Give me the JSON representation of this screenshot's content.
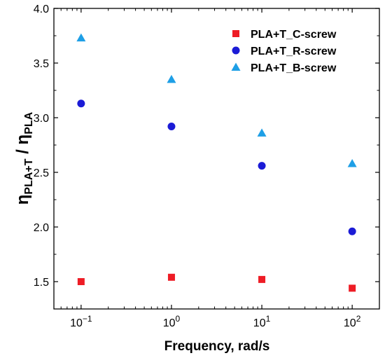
{
  "chart_data": {
    "type": "scatter",
    "x": [
      0.1,
      1,
      10,
      100
    ],
    "x_tick_labels": [
      {
        "base": "10",
        "exp": "−1"
      },
      {
        "base": "10",
        "exp": "0"
      },
      {
        "base": "10",
        "exp": "1"
      },
      {
        "base": "10",
        "exp": "2"
      }
    ],
    "y_tick_labels": [
      "1.5",
      "2.0",
      "2.5",
      "3.0",
      "3.5",
      "4.0"
    ],
    "y_ticks": [
      1.5,
      2.0,
      2.5,
      3.0,
      3.5,
      4.0
    ],
    "xscale": "log",
    "xlim": [
      0.05,
      200
    ],
    "ylim": [
      1.25,
      4.0
    ],
    "xlabel": "Frequency, rad/s",
    "ylabel": {
      "main1": "η",
      "sub1": "PLA+T",
      "sep": " / ",
      "main2": "η",
      "sub2": "PLA"
    },
    "grid": false,
    "legend_position": "top-right",
    "series": [
      {
        "name": "PLA+T_C-screw",
        "marker": "square",
        "color": "#ee1c25",
        "values": [
          1.5,
          1.54,
          1.52,
          1.44
        ]
      },
      {
        "name": "PLA+T_R-screw",
        "marker": "circle",
        "color": "#1b1bd6",
        "values": [
          3.13,
          2.92,
          2.56,
          1.96
        ]
      },
      {
        "name": "PLA+T_B-screw",
        "marker": "triangle",
        "color": "#1e9fe6",
        "values": [
          3.73,
          3.35,
          2.86,
          2.58
        ]
      }
    ]
  }
}
